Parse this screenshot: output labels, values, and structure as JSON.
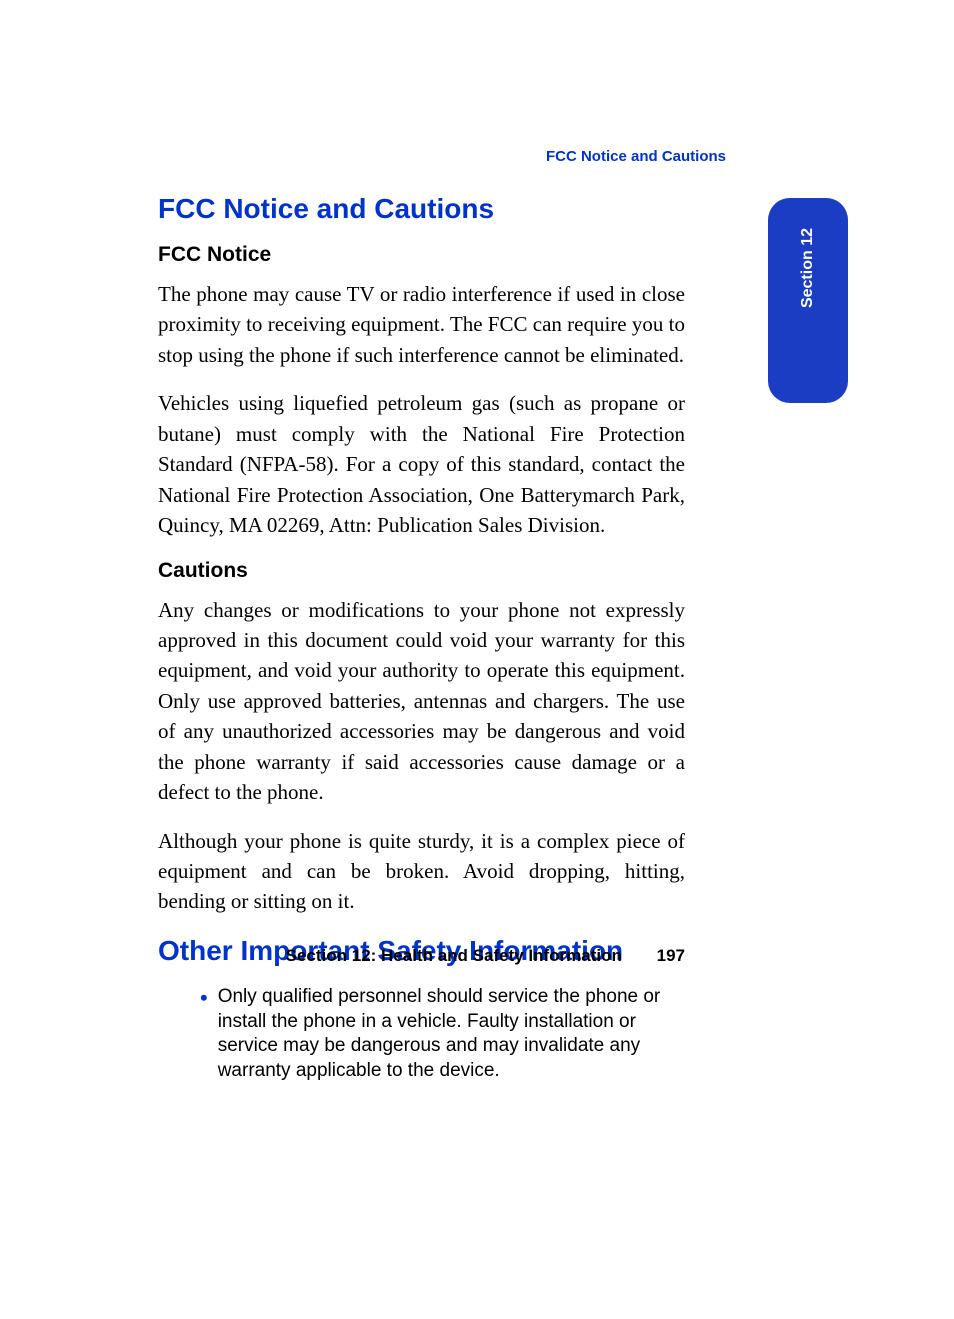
{
  "header": {
    "breadcrumb": "FCC Notice and Cautions"
  },
  "section_tab": {
    "label": "Section 12",
    "background_color": "#1a3dc4",
    "text_color": "#ffffff"
  },
  "colors": {
    "heading_blue": "#0033cc",
    "text_black": "#000000",
    "bullet_blue": "#0033cc",
    "page_background": "#ffffff"
  },
  "typography": {
    "heading_fontsize": 28,
    "subheading_fontsize": 21,
    "body_fontsize": 21,
    "bullet_fontsize": 19,
    "footer_fontsize": 17
  },
  "content": {
    "heading1": "FCC Notice and Cautions",
    "subheading1": "FCC Notice",
    "para1": "The phone may cause TV or radio interference if used in close proximity to receiving equipment. The FCC can require you to stop using the phone if such interference cannot be eliminated.",
    "para2": "Vehicles using liquefied petroleum gas (such as propane or butane) must comply with the National Fire Protection Standard (NFPA-58). For a copy of this standard, contact the National Fire Protection Association, One Batterymarch Park, Quincy, MA 02269, Attn: Publication Sales Division.",
    "subheading2": "Cautions",
    "para3": "Any changes or modifications to your phone not expressly approved in this document could void your warranty for this equipment, and void your authority to operate this equipment. Only use approved batteries, antennas and chargers. The use of any unauthorized accessories may be dangerous and void the phone warranty if said accessories cause damage or a defect to the phone.",
    "para4": "Although your phone is quite sturdy, it is a complex piece of equipment and can be broken. Avoid dropping, hitting, bending or sitting on it.",
    "heading2": "Other Important Safety Information",
    "bullet1": "Only qualified personnel should service the phone or install the phone in a vehicle. Faulty installation or service may be dangerous and may invalidate any warranty applicable to the device."
  },
  "footer": {
    "section_label": "Section 12: Health and Safety Information",
    "page_number": "197"
  }
}
